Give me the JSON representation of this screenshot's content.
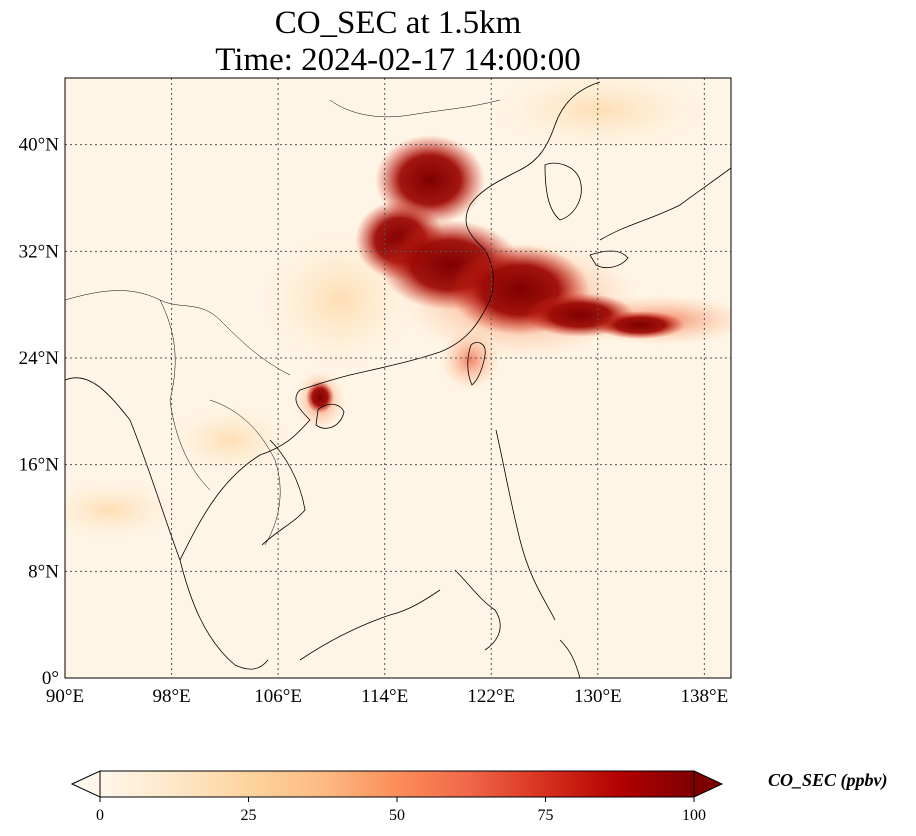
{
  "title": {
    "line1": "CO_SEC at 1.5km",
    "line2": "Time: 2024-02-17 14:00:00"
  },
  "map": {
    "extent_lon": [
      90,
      140
    ],
    "extent_lat": [
      0,
      45
    ],
    "lon_ticks": [
      {
        "value": 90,
        "label": "90°E"
      },
      {
        "value": 98,
        "label": "98°E"
      },
      {
        "value": 106,
        "label": "106°E"
      },
      {
        "value": 114,
        "label": "114°E"
      },
      {
        "value": 122,
        "label": "122°E"
      },
      {
        "value": 130,
        "label": "130°E"
      },
      {
        "value": 138,
        "label": "138°E"
      }
    ],
    "lat_ticks": [
      {
        "value": 0,
        "label": "0°"
      },
      {
        "value": 8,
        "label": "8°N"
      },
      {
        "value": 16,
        "label": "16°N"
      },
      {
        "value": 24,
        "label": "24°N"
      },
      {
        "value": 32,
        "label": "32°N"
      },
      {
        "value": 40,
        "label": "40°N"
      }
    ],
    "gridlines": true,
    "colormap": "OrRd",
    "background_color": "#fff5e6"
  },
  "colorbar": {
    "label": "CO_SEC (ppbv)",
    "min": 0,
    "max": 100,
    "ticks": [
      {
        "value": 0,
        "label": "0"
      },
      {
        "value": 25,
        "label": "25"
      },
      {
        "value": 50,
        "label": "50"
      },
      {
        "value": 75,
        "label": "75"
      },
      {
        "value": 100,
        "label": "100"
      }
    ],
    "extend": "both",
    "colors": [
      "#fff7ec",
      "#fee8c8",
      "#fdd49e",
      "#fdbb84",
      "#fc8d59",
      "#ef6548",
      "#d7301f",
      "#b30000",
      "#7f0000"
    ]
  }
}
